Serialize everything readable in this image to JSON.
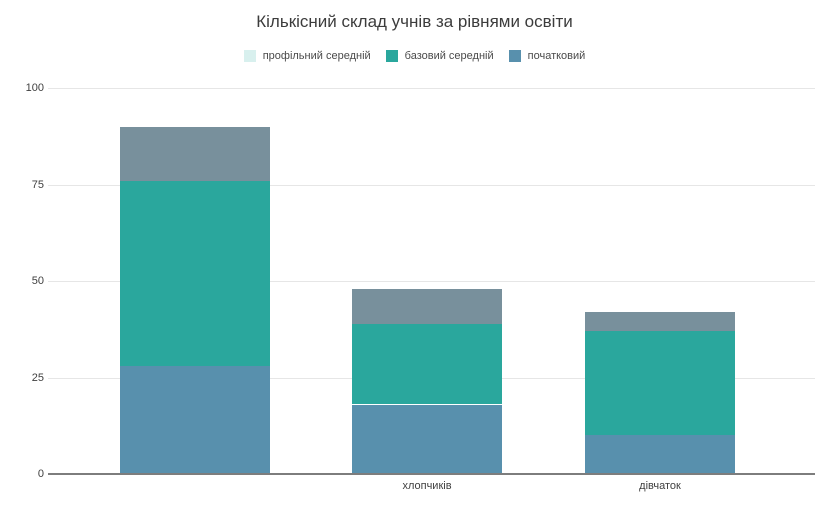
{
  "chart_data": {
    "type": "bar",
    "stacked": true,
    "title": "Кількісний склад учнів за рівнями освіти",
    "categories": [
      "",
      "хлопчиків",
      "дівчаток"
    ],
    "series": [
      {
        "name": "профільний середній",
        "values": [
          14,
          9,
          5
        ],
        "legend_color": "#d8f0ee",
        "bar_color": "#78909c",
        "stack_order": 3
      },
      {
        "name": "базовий середній",
        "values": [
          48,
          21,
          27
        ],
        "legend_color": "#2aa79d",
        "bar_color": "#2aa79d",
        "stack_order": 2
      },
      {
        "name": "початковий",
        "values": [
          28,
          18,
          10
        ],
        "legend_color": "#5890ad",
        "bar_color": "#5890ad",
        "stack_order": 1
      }
    ],
    "category_totals": [
      90,
      48,
      42
    ],
    "xlabel": "",
    "ylabel": "",
    "ylim": [
      0,
      100
    ],
    "yticks": [
      0,
      25,
      50,
      75,
      100
    ],
    "grid": true,
    "legend_position": "top"
  },
  "colors": {
    "background": "#ffffff",
    "gridline": "#e6e6e6",
    "axis_line": "#7d7d7d",
    "title_text": "#3c3c3c",
    "legend_text": "#4a4a4a",
    "tick_text": "#3f3f3f"
  }
}
